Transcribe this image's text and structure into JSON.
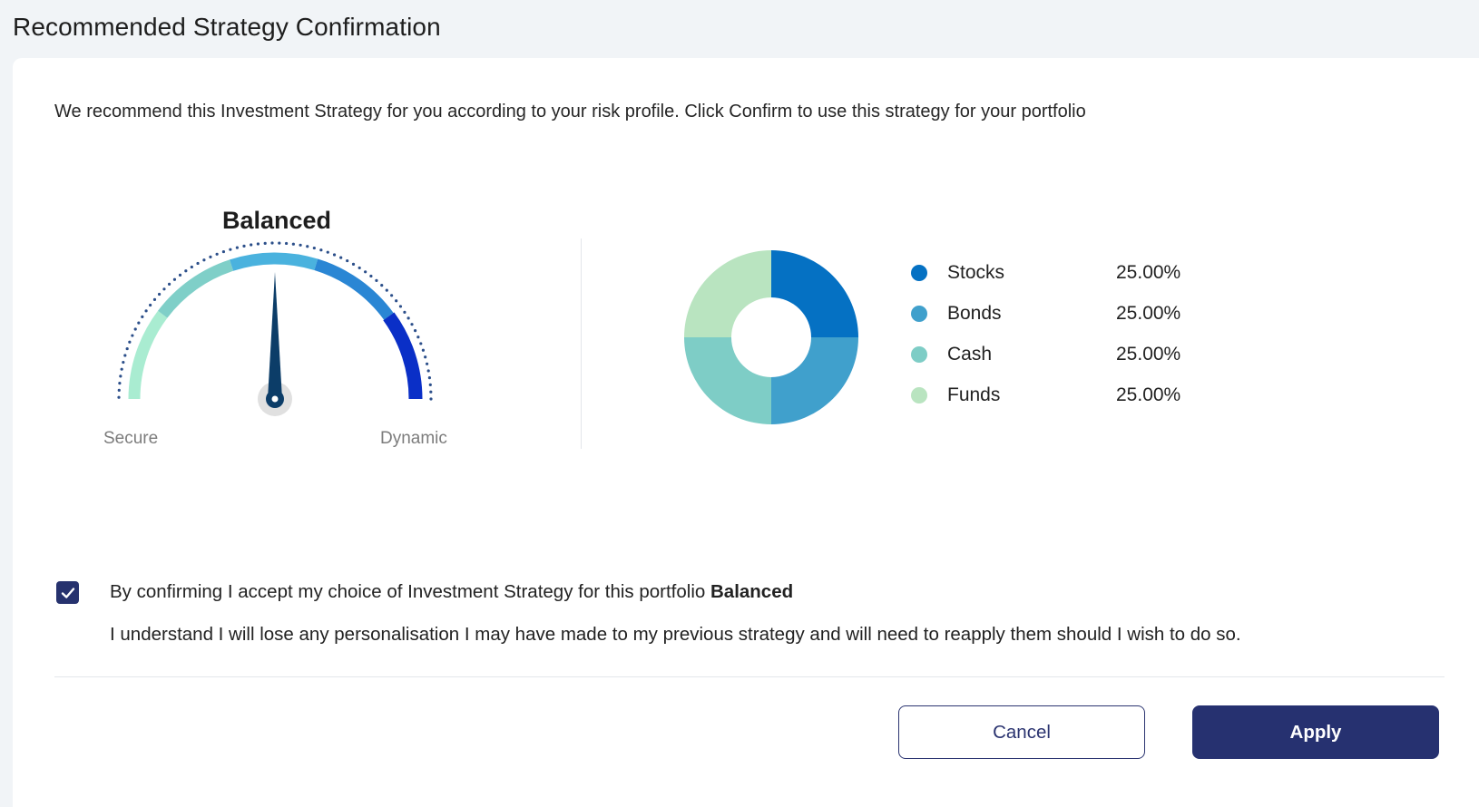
{
  "page": {
    "title": "Recommended Strategy Confirmation",
    "intro": "We recommend this Investment Strategy for you according to your risk profile. Click Confirm to use this strategy for your portfolio"
  },
  "gauge": {
    "value_label": "Balanced",
    "min_label": "Secure",
    "max_label": "Dynamic",
    "level": 0.5,
    "colors": [
      "#a9ecd1",
      "#7fcfc8",
      "#4ab2de",
      "#2a86d4",
      "#0a2fc7"
    ],
    "needle_color": "#0c3d68"
  },
  "allocation": {
    "items": [
      {
        "name": "Stocks",
        "value": "25.00%",
        "share": 25,
        "color": "#0571c3"
      },
      {
        "name": "Bonds",
        "value": "25.00%",
        "share": 25,
        "color": "#40a0cc"
      },
      {
        "name": "Cash",
        "value": "25.00%",
        "share": 25,
        "color": "#7ecdc6"
      },
      {
        "name": "Funds",
        "value": "25.00%",
        "share": 25,
        "color": "#b9e4c0"
      }
    ]
  },
  "confirmation": {
    "checked": true,
    "text_prefix": "By confirming I accept my choice of Investment Strategy for this portfolio",
    "strategy": "Balanced",
    "note": "I understand I will lose any personalisation I may have made to my previous strategy and will need to reapply them should I wish to do so."
  },
  "actions": {
    "cancel_label": "Cancel",
    "apply_label": "Apply"
  }
}
